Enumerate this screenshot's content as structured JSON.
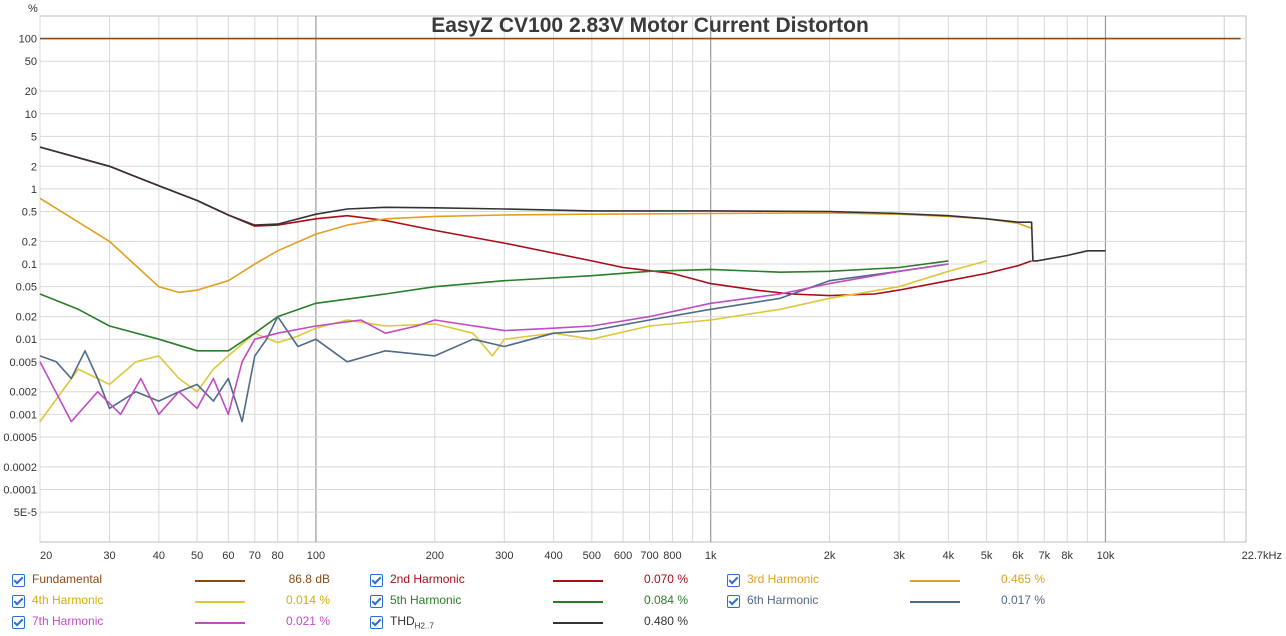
{
  "chart_data": {
    "type": "line",
    "title": "EasyZ CV100 2.83V Motor Current Distorton",
    "ylabel": "%",
    "x_scale": "log",
    "y_scale": "log",
    "xlim": [
      20,
      22700
    ],
    "ylim": [
      2e-05,
      200
    ],
    "grid": true,
    "x_ticks": [
      "20",
      "30",
      "40",
      "50",
      "60",
      "70",
      "80",
      "100",
      "200",
      "300",
      "400",
      "500",
      "600",
      "700",
      "800",
      "1k",
      "2k",
      "3k",
      "4k",
      "5k",
      "6k",
      "7k",
      "8k",
      "10k",
      "22.7kHz"
    ],
    "x_tick_values": [
      20,
      30,
      40,
      50,
      60,
      70,
      80,
      100,
      200,
      300,
      400,
      500,
      600,
      700,
      800,
      1000,
      2000,
      3000,
      4000,
      5000,
      6000,
      7000,
      8000,
      10000,
      22700
    ],
    "y_ticks": [
      "100",
      "50",
      "20",
      "10",
      "5",
      "2",
      "1",
      "0.5",
      "0.2",
      "0.1",
      "0.05",
      "0.02",
      "0.01",
      "0.005",
      "0.002",
      "0.001",
      "0.0005",
      "0.0002",
      "0.0001",
      "5E-5"
    ],
    "y_tick_values": [
      100,
      50,
      20,
      10,
      5,
      2,
      1,
      0.5,
      0.2,
      0.1,
      0.05,
      0.02,
      0.01,
      0.005,
      0.002,
      0.001,
      0.0005,
      0.0002,
      0.0001,
      5e-05
    ],
    "series": [
      {
        "name": "Fundamental",
        "color": "#8b4a14",
        "x": [
          20,
          22000
        ],
        "y": [
          100,
          100
        ]
      },
      {
        "name": "2nd Harmonic",
        "color": "#a80d18",
        "x": [
          20,
          30,
          40,
          50,
          60,
          70,
          80,
          100,
          120,
          150,
          200,
          300,
          400,
          500,
          600,
          800,
          1000,
          1300,
          1600,
          2000,
          2600,
          3000,
          4000,
          5000,
          6000,
          6500
        ],
        "y": [
          3.6,
          2.0,
          1.1,
          0.7,
          0.45,
          0.32,
          0.33,
          0.4,
          0.44,
          0.38,
          0.28,
          0.19,
          0.14,
          0.11,
          0.09,
          0.075,
          0.055,
          0.045,
          0.04,
          0.038,
          0.04,
          0.045,
          0.06,
          0.075,
          0.095,
          0.11
        ]
      },
      {
        "name": "3rd Harmonic",
        "color": "#e0a020",
        "x": [
          20,
          30,
          40,
          45,
          50,
          60,
          70,
          80,
          100,
          120,
          150,
          200,
          300,
          500,
          1000,
          2000,
          3000,
          4000,
          5000,
          6000,
          6500
        ],
        "y": [
          0.75,
          0.2,
          0.05,
          0.042,
          0.045,
          0.06,
          0.1,
          0.15,
          0.25,
          0.33,
          0.4,
          0.43,
          0.45,
          0.46,
          0.47,
          0.48,
          0.46,
          0.43,
          0.4,
          0.35,
          0.3
        ]
      },
      {
        "name": "4th Harmonic",
        "color": "#dcc83a",
        "x": [
          20,
          25,
          30,
          35,
          40,
          45,
          50,
          55,
          60,
          70,
          80,
          90,
          100,
          120,
          150,
          200,
          250,
          280,
          300,
          400,
          500,
          700,
          1000,
          1500,
          2000,
          3000,
          4000,
          5000
        ],
        "y": [
          0.0008,
          0.004,
          0.0025,
          0.005,
          0.006,
          0.003,
          0.002,
          0.004,
          0.006,
          0.012,
          0.009,
          0.011,
          0.014,
          0.018,
          0.015,
          0.016,
          0.012,
          0.006,
          0.01,
          0.012,
          0.01,
          0.015,
          0.018,
          0.025,
          0.035,
          0.05,
          0.08,
          0.11
        ]
      },
      {
        "name": "5th Harmonic",
        "color": "#2a7d2a",
        "x": [
          20,
          25,
          30,
          40,
          50,
          60,
          70,
          80,
          100,
          150,
          200,
          300,
          500,
          700,
          1000,
          1500,
          2000,
          3000,
          4000
        ],
        "y": [
          0.04,
          0.025,
          0.015,
          0.01,
          0.007,
          0.007,
          0.012,
          0.02,
          0.03,
          0.04,
          0.05,
          0.06,
          0.07,
          0.08,
          0.085,
          0.078,
          0.08,
          0.09,
          0.11
        ]
      },
      {
        "name": "6th Harmonic",
        "color": "#506a88",
        "x": [
          20,
          22,
          24,
          26,
          28,
          30,
          35,
          40,
          45,
          50,
          55,
          60,
          65,
          70,
          75,
          80,
          90,
          100,
          120,
          150,
          200,
          250,
          300,
          400,
          500,
          700,
          1000,
          1500,
          2000,
          3000,
          4000
        ],
        "y": [
          0.006,
          0.005,
          0.003,
          0.007,
          0.003,
          0.0012,
          0.002,
          0.0015,
          0.002,
          0.0025,
          0.0015,
          0.003,
          0.0008,
          0.006,
          0.01,
          0.02,
          0.008,
          0.01,
          0.005,
          0.007,
          0.006,
          0.01,
          0.008,
          0.012,
          0.013,
          0.018,
          0.025,
          0.035,
          0.06,
          0.08,
          0.1
        ]
      },
      {
        "name": "7th Harmonic",
        "color": "#c04cc4",
        "x": [
          20,
          24,
          28,
          32,
          36,
          40,
          45,
          50,
          55,
          60,
          65,
          70,
          80,
          100,
          130,
          150,
          180,
          200,
          300,
          400,
          500,
          700,
          1000,
          1500,
          2000,
          3000,
          4000
        ],
        "y": [
          0.005,
          0.0008,
          0.002,
          0.001,
          0.003,
          0.001,
          0.002,
          0.0012,
          0.003,
          0.001,
          0.005,
          0.01,
          0.012,
          0.015,
          0.018,
          0.012,
          0.015,
          0.018,
          0.013,
          0.014,
          0.015,
          0.02,
          0.03,
          0.04,
          0.055,
          0.08,
          0.1
        ]
      },
      {
        "name": "THD",
        "color": "#333333",
        "x": [
          20,
          30,
          40,
          50,
          60,
          70,
          80,
          100,
          120,
          150,
          200,
          300,
          500,
          1000,
          2000,
          3000,
          4000,
          5000,
          6000,
          6500,
          6550,
          6700,
          8000,
          9000,
          10000
        ],
        "y": [
          3.6,
          2.0,
          1.1,
          0.7,
          0.45,
          0.33,
          0.34,
          0.46,
          0.54,
          0.57,
          0.56,
          0.54,
          0.51,
          0.51,
          0.5,
          0.47,
          0.44,
          0.4,
          0.36,
          0.36,
          0.11,
          0.11,
          0.13,
          0.15,
          0.15
        ]
      }
    ]
  },
  "legend": [
    {
      "name": "Fundamental",
      "value": "86.8 dB",
      "color": "#8b4a14",
      "text_color": "#8b4a14"
    },
    {
      "name": "2nd Harmonic",
      "value": "0.070 %",
      "color": "#a80d18",
      "text_color": "#a80d18"
    },
    {
      "name": "3rd Harmonic",
      "value": "0.465 %",
      "color": "#e0a020",
      "text_color": "#e0a020"
    },
    {
      "name": "4th Harmonic",
      "value": "0.014 %",
      "color": "#dcc83a",
      "text_color": "#d4b000"
    },
    {
      "name": "5th Harmonic",
      "value": "0.084 %",
      "color": "#2a7d2a",
      "text_color": "#2a7d2a"
    },
    {
      "name": "6th Harmonic",
      "value": "0.017 %",
      "color": "#506a88",
      "text_color": "#506a88"
    },
    {
      "name": "7th Harmonic",
      "value": "0.021 %",
      "color": "#c04cc4",
      "text_color": "#c04cc4"
    },
    {
      "name": "THD",
      "sub": "H2..7",
      "value": "0.480 %",
      "color": "#333333",
      "text_color": "#333333"
    }
  ]
}
